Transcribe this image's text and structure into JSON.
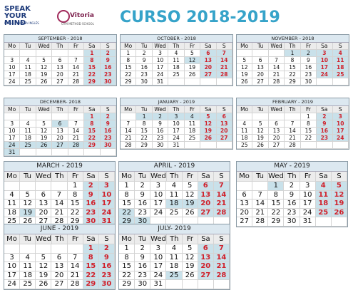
{
  "header": {
    "logo": "SPEAK YOUR MIND",
    "logo_tagline": "HABLA Y PIENSA INGLÉS",
    "school": "Vitoria",
    "school_tagline": "GYM METHOD SCHOOL",
    "title": "CURSO 2018-2019"
  },
  "weekdays": [
    "Mo",
    "Tu",
    "Wed",
    "Th",
    "Fr",
    "Sa",
    "S"
  ],
  "months": [
    {
      "title": "SEPTEMBER - 2018",
      "highlight": [],
      "weeks": [
        [
          null,
          null,
          null,
          null,
          null,
          1,
          2
        ],
        [
          3,
          4,
          5,
          6,
          7,
          8,
          9
        ],
        [
          10,
          11,
          12,
          13,
          14,
          15,
          16
        ],
        [
          17,
          18,
          19,
          20,
          21,
          22,
          23
        ],
        [
          24,
          25,
          26,
          27,
          28,
          29,
          30
        ]
      ]
    },
    {
      "title": "OCTOBER - 2018",
      "highlight": [
        12
      ],
      "weeks": [
        [
          1,
          2,
          3,
          4,
          5,
          6,
          7
        ],
        [
          8,
          9,
          10,
          11,
          12,
          13,
          14
        ],
        [
          15,
          16,
          17,
          18,
          19,
          20,
          21
        ],
        [
          22,
          23,
          24,
          25,
          26,
          27,
          28
        ],
        [
          29,
          30,
          31,
          null,
          null,
          null,
          null
        ]
      ]
    },
    {
      "title": "NOVEMBER - 2018",
      "highlight": [
        1,
        2
      ],
      "weeks": [
        [
          null,
          null,
          null,
          1,
          2,
          3,
          4
        ],
        [
          5,
          6,
          7,
          8,
          9,
          10,
          11
        ],
        [
          12,
          13,
          14,
          15,
          16,
          17,
          18
        ],
        [
          19,
          20,
          21,
          22,
          23,
          24,
          25
        ],
        [
          26,
          27,
          28,
          29,
          30,
          null,
          null
        ]
      ]
    },
    {
      "title": "DECEMBER- 2018",
      "highlight": [
        6,
        24,
        25,
        26,
        27,
        28,
        31
      ],
      "weeks": [
        [
          null,
          null,
          null,
          null,
          null,
          1,
          2
        ],
        [
          3,
          4,
          5,
          6,
          7,
          8,
          9
        ],
        [
          10,
          11,
          12,
          13,
          14,
          15,
          16
        ],
        [
          17,
          18,
          19,
          20,
          21,
          22,
          23
        ],
        [
          24,
          25,
          26,
          27,
          28,
          29,
          30
        ],
        [
          31,
          null,
          null,
          null,
          null,
          null,
          null
        ]
      ]
    },
    {
      "title": "JANUARY - 2019",
      "highlight": [
        1,
        2,
        3,
        4
      ],
      "weeks": [
        [
          null,
          1,
          2,
          3,
          4,
          5,
          6
        ],
        [
          7,
          8,
          9,
          10,
          11,
          12,
          13
        ],
        [
          14,
          15,
          16,
          17,
          18,
          19,
          20
        ],
        [
          21,
          22,
          23,
          24,
          25,
          26,
          27
        ],
        [
          28,
          29,
          30,
          31,
          null,
          null,
          null
        ]
      ]
    },
    {
      "title": "FEBRUARY - 2019",
      "highlight": [],
      "weeks": [
        [
          null,
          null,
          null,
          null,
          1,
          2,
          3
        ],
        [
          4,
          5,
          6,
          7,
          8,
          9,
          10
        ],
        [
          11,
          12,
          13,
          14,
          15,
          16,
          17
        ],
        [
          18,
          19,
          20,
          21,
          22,
          23,
          24
        ],
        [
          25,
          26,
          27,
          28,
          null,
          null,
          null
        ]
      ]
    },
    {
      "title": "MARCH - 2019",
      "highlight": [
        19
      ],
      "weeks": [
        [
          null,
          null,
          null,
          null,
          1,
          2,
          3
        ],
        [
          4,
          5,
          6,
          7,
          8,
          9,
          10
        ],
        [
          11,
          12,
          13,
          14,
          15,
          16,
          17
        ],
        [
          18,
          19,
          20,
          21,
          22,
          23,
          24
        ],
        [
          25,
          26,
          27,
          28,
          29,
          30,
          31
        ]
      ]
    },
    {
      "title": "APRIL - 2019",
      "highlight": [
        18,
        19,
        22,
        29,
        30
      ],
      "weeks": [
        [
          1,
          2,
          3,
          4,
          5,
          6,
          7
        ],
        [
          8,
          9,
          10,
          11,
          12,
          13,
          14
        ],
        [
          15,
          16,
          17,
          18,
          19,
          20,
          21
        ],
        [
          22,
          23,
          24,
          25,
          26,
          27,
          28
        ],
        [
          29,
          30,
          null,
          null,
          null,
          null,
          null
        ]
      ]
    },
    {
      "title": "MAY - 2019",
      "highlight": [
        1
      ],
      "weeks": [
        [
          null,
          null,
          1,
          2,
          3,
          4,
          5
        ],
        [
          6,
          7,
          8,
          9,
          10,
          11,
          12
        ],
        [
          13,
          14,
          15,
          16,
          17,
          18,
          19
        ],
        [
          20,
          21,
          22,
          23,
          24,
          25,
          26
        ],
        [
          27,
          28,
          29,
          30,
          31,
          null,
          null
        ]
      ]
    },
    {
      "title": "JUNE - 2019",
      "highlight": [],
      "weeks": [
        [
          null,
          null,
          null,
          null,
          null,
          1,
          2
        ],
        [
          3,
          4,
          5,
          6,
          7,
          8,
          9
        ],
        [
          10,
          11,
          12,
          13,
          14,
          15,
          16
        ],
        [
          17,
          18,
          19,
          20,
          21,
          22,
          23
        ],
        [
          24,
          25,
          26,
          27,
          28,
          29,
          30
        ]
      ]
    },
    {
      "title": "JULY- 2019",
      "highlight": [
        25
      ],
      "weeks": [
        [
          1,
          2,
          3,
          4,
          5,
          6,
          7
        ],
        [
          8,
          9,
          10,
          11,
          12,
          13,
          14
        ],
        [
          15,
          16,
          17,
          18,
          19,
          20,
          21
        ],
        [
          22,
          23,
          24,
          25,
          26,
          27,
          28
        ],
        [
          29,
          30,
          31,
          null,
          null,
          null,
          null
        ]
      ]
    }
  ]
}
